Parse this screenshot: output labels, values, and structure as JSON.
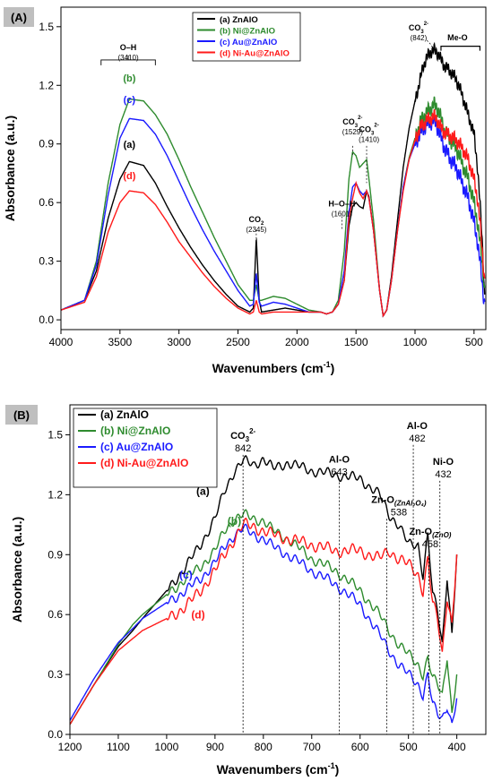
{
  "chart_data": [
    {
      "type": "line",
      "panel_label": "(A)",
      "xlabel": "Wavenumbers (cm",
      "xlabel_sup": "-1",
      "xlabel_close": ")",
      "ylabel": "Absorbance (a.u.)",
      "xlim": [
        4000,
        400
      ],
      "ylim": [
        -0.05,
        1.6
      ],
      "x_reversed": true,
      "grid": false,
      "legend_position": "top-center",
      "x_ticks": [
        4000,
        3500,
        3000,
        2500,
        2000,
        1500,
        1000,
        500
      ],
      "x_tick_labels": [
        "4000",
        "3500",
        "3000",
        "2500",
        "2000",
        "1500",
        "1000",
        "500"
      ],
      "y_ticks": [
        0.0,
        0.3,
        0.6,
        0.9,
        1.2,
        1.5
      ],
      "y_tick_labels": [
        "0.0",
        "0.3",
        "0.6",
        "0.9",
        "1.2",
        "1.5"
      ],
      "series": [
        {
          "name": "(a) ZnAlO",
          "label": "(a)",
          "color": "#000000",
          "noise": 0.035,
          "x": [
            4000,
            3800,
            3700,
            3600,
            3500,
            3420,
            3300,
            3200,
            3100,
            3000,
            2900,
            2800,
            2700,
            2600,
            2500,
            2400,
            2370,
            2345,
            2320,
            2300,
            2200,
            2100,
            2000,
            1900,
            1800,
            1750,
            1700,
            1650,
            1600,
            1560,
            1529,
            1500,
            1470,
            1440,
            1410,
            1390,
            1350,
            1300,
            1270,
            1240,
            1200,
            1150,
            1100,
            1050,
            1000,
            960,
            930,
            900,
            870,
            842,
            820,
            800,
            780,
            750,
            700,
            650,
            600,
            550,
            500,
            470,
            450,
            430,
            410
          ],
          "y": [
            0.05,
            0.1,
            0.25,
            0.52,
            0.72,
            0.81,
            0.79,
            0.7,
            0.58,
            0.47,
            0.37,
            0.28,
            0.2,
            0.13,
            0.07,
            0.04,
            0.06,
            0.42,
            0.1,
            0.04,
            0.05,
            0.06,
            0.05,
            0.04,
            0.04,
            0.03,
            0.04,
            0.08,
            0.2,
            0.48,
            0.58,
            0.6,
            0.58,
            0.57,
            0.66,
            0.63,
            0.45,
            0.15,
            0.02,
            0.05,
            0.22,
            0.5,
            0.78,
            0.98,
            1.12,
            1.22,
            1.3,
            1.34,
            1.37,
            1.38,
            1.37,
            1.36,
            1.33,
            1.3,
            1.27,
            1.23,
            1.15,
            1.05,
            0.95,
            0.78,
            0.6,
            0.4,
            0.12
          ]
        },
        {
          "name": "(b) Ni@ZnAlO",
          "label": "(b)",
          "color": "#2e8b2e",
          "noise": 0.045,
          "x": [
            4000,
            3800,
            3700,
            3600,
            3500,
            3420,
            3300,
            3200,
            3100,
            3000,
            2900,
            2800,
            2700,
            2600,
            2500,
            2400,
            2370,
            2345,
            2320,
            2300,
            2200,
            2100,
            2000,
            1900,
            1800,
            1750,
            1700,
            1650,
            1600,
            1560,
            1529,
            1500,
            1470,
            1440,
            1410,
            1390,
            1350,
            1300,
            1270,
            1240,
            1200,
            1150,
            1100,
            1050,
            1000,
            960,
            930,
            900,
            870,
            842,
            820,
            800,
            780,
            750,
            700,
            650,
            600,
            550,
            500,
            470,
            450,
            430,
            410
          ],
          "y": [
            0.05,
            0.1,
            0.3,
            0.7,
            1.0,
            1.13,
            1.12,
            1.05,
            0.95,
            0.82,
            0.68,
            0.55,
            0.42,
            0.3,
            0.18,
            0.1,
            0.1,
            0.18,
            0.1,
            0.1,
            0.12,
            0.11,
            0.08,
            0.05,
            0.04,
            0.03,
            0.04,
            0.1,
            0.35,
            0.72,
            0.86,
            0.84,
            0.78,
            0.8,
            0.82,
            0.72,
            0.5,
            0.15,
            0.02,
            0.05,
            0.2,
            0.45,
            0.68,
            0.83,
            0.93,
            1.0,
            1.04,
            1.06,
            1.08,
            1.1,
            1.09,
            1.07,
            1.03,
            0.97,
            0.92,
            0.88,
            0.8,
            0.72,
            0.6,
            0.5,
            0.4,
            0.28,
            0.15
          ]
        },
        {
          "name": "(c) Au@ZnAlO",
          "label": "(c)",
          "color": "#1a1aff",
          "noise": 0.045,
          "x": [
            4000,
            3800,
            3700,
            3600,
            3500,
            3420,
            3300,
            3200,
            3100,
            3000,
            2900,
            2800,
            2700,
            2600,
            2500,
            2400,
            2370,
            2345,
            2320,
            2300,
            2200,
            2100,
            2000,
            1900,
            1800,
            1750,
            1700,
            1650,
            1600,
            1560,
            1529,
            1500,
            1470,
            1440,
            1410,
            1390,
            1350,
            1300,
            1270,
            1240,
            1200,
            1150,
            1100,
            1050,
            1000,
            960,
            930,
            900,
            870,
            842,
            820,
            800,
            780,
            750,
            700,
            650,
            600,
            550,
            500,
            470,
            450,
            430,
            410
          ],
          "y": [
            0.05,
            0.1,
            0.28,
            0.64,
            0.93,
            1.03,
            1.02,
            0.95,
            0.84,
            0.71,
            0.58,
            0.46,
            0.35,
            0.25,
            0.15,
            0.07,
            0.08,
            0.24,
            0.09,
            0.07,
            0.09,
            0.08,
            0.06,
            0.04,
            0.04,
            0.03,
            0.04,
            0.08,
            0.25,
            0.55,
            0.68,
            0.7,
            0.66,
            0.64,
            0.66,
            0.62,
            0.45,
            0.15,
            0.02,
            0.05,
            0.2,
            0.45,
            0.68,
            0.82,
            0.9,
            0.95,
            0.98,
            1.0,
            1.01,
            1.02,
            1.0,
            0.97,
            0.93,
            0.88,
            0.82,
            0.78,
            0.7,
            0.62,
            0.5,
            0.4,
            0.3,
            0.18,
            0.08
          ]
        },
        {
          "name": "(d) Ni-Au@ZnAlO",
          "label": "(d)",
          "color": "#ff1a1a",
          "noise": 0.04,
          "x": [
            4000,
            3800,
            3700,
            3600,
            3500,
            3420,
            3300,
            3200,
            3100,
            3000,
            2900,
            2800,
            2700,
            2600,
            2500,
            2400,
            2370,
            2345,
            2320,
            2300,
            2200,
            2100,
            2000,
            1900,
            1800,
            1750,
            1700,
            1650,
            1600,
            1560,
            1529,
            1500,
            1470,
            1440,
            1410,
            1390,
            1350,
            1300,
            1270,
            1240,
            1200,
            1150,
            1100,
            1050,
            1000,
            960,
            930,
            900,
            870,
            842,
            820,
            800,
            780,
            750,
            700,
            650,
            600,
            550,
            500,
            470,
            450,
            430,
            410
          ],
          "y": [
            0.05,
            0.09,
            0.22,
            0.45,
            0.6,
            0.66,
            0.65,
            0.59,
            0.5,
            0.4,
            0.32,
            0.24,
            0.17,
            0.11,
            0.06,
            0.03,
            0.04,
            0.1,
            0.04,
            0.03,
            0.04,
            0.04,
            0.04,
            0.04,
            0.04,
            0.03,
            0.04,
            0.08,
            0.2,
            0.52,
            0.62,
            0.7,
            0.65,
            0.62,
            0.66,
            0.62,
            0.45,
            0.15,
            0.02,
            0.05,
            0.2,
            0.45,
            0.66,
            0.82,
            0.92,
            0.98,
            1.0,
            1.02,
            1.03,
            1.04,
            1.03,
            1.01,
            0.98,
            0.96,
            0.94,
            0.92,
            0.88,
            0.82,
            0.72,
            0.62,
            0.5,
            0.35,
            0.2
          ]
        }
      ],
      "annotations": [
        {
          "text": "O–H",
          "sub": "(3410)",
          "x": 3430,
          "y": 1.38
        },
        {
          "text": "CO",
          "sub_text": "2",
          "sub": "(2345)",
          "x": 2345,
          "y": 0.5
        },
        {
          "text": "H–O–H",
          "sub": "(1601)",
          "x": 1620,
          "y": 0.58
        },
        {
          "text": "CO",
          "sup_text": "2-",
          "sub_text": "3",
          "sub": "(1529)",
          "x": 1529,
          "y": 1.0
        },
        {
          "text": "CO",
          "sup_text": "2-",
          "sub_text": "3",
          "sub": "(1410)",
          "x": 1390,
          "y": 0.96
        },
        {
          "text": "CO",
          "sup_text": "2-",
          "sub_text": "3",
          "sub": "(842)",
          "x": 970,
          "y": 1.48
        },
        {
          "text": "Me-O",
          "x": 640,
          "y": 1.43
        }
      ]
    },
    {
      "type": "line",
      "panel_label": "(B)",
      "xlabel": "Wavenumbers (cm",
      "xlabel_sup": "-1",
      "xlabel_close": ")",
      "ylabel": "Absorbance (a.u.)",
      "xlim": [
        1200,
        340
      ],
      "ylim": [
        0.0,
        1.65
      ],
      "x_reversed": true,
      "grid": false,
      "legend_position": "top-left",
      "x_ticks": [
        1200,
        1100,
        1000,
        900,
        800,
        700,
        600,
        500,
        400
      ],
      "x_tick_labels": [
        "1200",
        "1100",
        "1000",
        "900",
        "800",
        "700",
        "600",
        "500",
        "400"
      ],
      "y_ticks": [
        0.0,
        0.3,
        0.6,
        0.9,
        1.2,
        1.5
      ],
      "y_tick_labels": [
        "0.0",
        "0.3",
        "0.6",
        "0.9",
        "1.2",
        "1.5"
      ],
      "series": [
        {
          "name": "(a) ZnAlO",
          "label": "(a)",
          "color": "#000000",
          "noise": 0.03,
          "x": [
            1200,
            1150,
            1100,
            1070,
            1050,
            1000,
            960,
            930,
            900,
            880,
            860,
            842,
            820,
            800,
            780,
            750,
            700,
            650,
            600,
            560,
            540,
            520,
            500,
            480,
            470,
            460,
            450,
            440,
            430,
            420,
            410,
            400
          ],
          "y": [
            0.05,
            0.25,
            0.44,
            0.52,
            0.58,
            0.72,
            0.84,
            0.95,
            1.08,
            1.22,
            1.32,
            1.37,
            1.35,
            1.38,
            1.33,
            1.36,
            1.32,
            1.3,
            1.28,
            1.2,
            1.1,
            1.05,
            0.95,
            0.95,
            0.8,
            1.0,
            0.7,
            0.62,
            0.45,
            0.8,
            0.5,
            0.9
          ]
        },
        {
          "name": "(b) Ni@ZnAlO",
          "label": "(b)",
          "color": "#2e8b2e",
          "noise": 0.03,
          "x": [
            1200,
            1150,
            1100,
            1070,
            1050,
            1000,
            960,
            930,
            900,
            880,
            860,
            842,
            820,
            800,
            780,
            750,
            700,
            650,
            600,
            560,
            540,
            520,
            500,
            480,
            470,
            460,
            450,
            440,
            430,
            420,
            410,
            400
          ],
          "y": [
            0.05,
            0.25,
            0.45,
            0.55,
            0.6,
            0.7,
            0.78,
            0.84,
            0.92,
            1.02,
            1.08,
            1.1,
            1.08,
            1.07,
            1.02,
            0.98,
            0.88,
            0.82,
            0.72,
            0.6,
            0.52,
            0.45,
            0.4,
            0.35,
            0.3,
            0.38,
            0.28,
            0.25,
            0.2,
            0.4,
            0.1,
            0.3
          ]
        },
        {
          "name": "(c) Au@ZnAlO",
          "label": "(c)",
          "color": "#1a1aff",
          "noise": 0.03,
          "x": [
            1200,
            1150,
            1100,
            1070,
            1050,
            1000,
            960,
            930,
            900,
            880,
            860,
            842,
            820,
            800,
            780,
            750,
            700,
            650,
            600,
            560,
            540,
            520,
            500,
            480,
            470,
            460,
            450,
            440,
            430,
            420,
            410,
            400
          ],
          "y": [
            0.07,
            0.28,
            0.46,
            0.53,
            0.58,
            0.66,
            0.72,
            0.78,
            0.86,
            0.94,
            1.0,
            1.03,
            1.0,
            0.98,
            0.94,
            0.9,
            0.82,
            0.75,
            0.65,
            0.5,
            0.42,
            0.35,
            0.3,
            0.25,
            0.2,
            0.3,
            0.15,
            0.1,
            0.08,
            0.15,
            0.05,
            0.18
          ]
        },
        {
          "name": "(d) Ni-Au@ZnAlO",
          "label": "(d)",
          "color": "#ff1a1a",
          "noise": 0.035,
          "x": [
            1200,
            1150,
            1100,
            1070,
            1050,
            1000,
            960,
            930,
            900,
            880,
            860,
            842,
            820,
            800,
            780,
            750,
            700,
            650,
            600,
            560,
            540,
            520,
            500,
            480,
            470,
            460,
            450,
            440,
            430,
            420,
            410,
            400
          ],
          "y": [
            0.05,
            0.25,
            0.42,
            0.48,
            0.52,
            0.58,
            0.64,
            0.72,
            0.82,
            0.9,
            0.98,
            1.05,
            1.04,
            1.02,
            1.0,
            0.98,
            0.95,
            0.92,
            0.92,
            0.88,
            0.92,
            0.88,
            0.85,
            0.8,
            0.72,
            0.88,
            0.65,
            0.58,
            0.4,
            0.7,
            0.55,
            0.9
          ]
        }
      ],
      "annotations": [
        {
          "text": "CO",
          "sup_text": "2-",
          "sub_text": "3",
          "sub": "842",
          "x": 842,
          "y": 1.48,
          "line_x": 842
        },
        {
          "text": "Al-O",
          "sub": "643",
          "x": 643,
          "y": 1.36,
          "line_x": 643
        },
        {
          "text": "Zn-O",
          "sub_text": "(ZnAl₂O₄)",
          "sub": "538",
          "x": 520,
          "y": 1.16,
          "line_x": 545
        },
        {
          "text": "Al-O",
          "sub": "482",
          "x": 482,
          "y": 1.53,
          "line_x": 490
        },
        {
          "text": "Zn-O",
          "sub_text": "(ZnO)",
          "sub": "458",
          "x": 455,
          "y": 1.0,
          "line_x": 458
        },
        {
          "text": "Ni-O",
          "sub": "432",
          "x": 428,
          "y": 1.35,
          "line_x": 435
        }
      ]
    }
  ]
}
